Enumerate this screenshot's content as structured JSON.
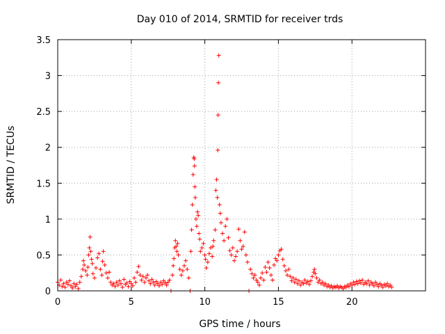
{
  "chart_data": {
    "type": "scatter",
    "title": "Day 010 of 2014, SRMTID for receiver trds",
    "xlabel": "GPS time / hours",
    "ylabel": "SRMTID / TECUs",
    "xlim": [
      0,
      25.0
    ],
    "ylim": [
      0,
      3.5
    ],
    "x_ticks": [
      0,
      5,
      10,
      15,
      20
    ],
    "x_tick_labels": [
      "0",
      "5",
      "10",
      "15",
      "20"
    ],
    "y_ticks": [
      0,
      0.5,
      1,
      1.5,
      2,
      2.5,
      3,
      3.5
    ],
    "y_tick_labels": [
      "0",
      "0.5",
      "1",
      "1.5",
      "2",
      "2.5",
      "3",
      "3.5"
    ],
    "grid": true,
    "marker": "+",
    "series": [
      {
        "name": "SRMTID",
        "color": "#ff0000",
        "points": [
          [
            0.0,
            0.12
          ],
          [
            0.1,
            0.08
          ],
          [
            0.2,
            0.15
          ],
          [
            0.3,
            0.06
          ],
          [
            0.4,
            0.1
          ],
          [
            0.5,
            0.05
          ],
          [
            0.6,
            0.12
          ],
          [
            0.7,
            0.09
          ],
          [
            0.8,
            0.14
          ],
          [
            0.9,
            0.07
          ],
          [
            1.0,
            0.04
          ],
          [
            1.1,
            0.1
          ],
          [
            1.2,
            0.06
          ],
          [
            1.3,
            0.09
          ],
          [
            1.4,
            0.03
          ],
          [
            1.5,
            0.12
          ],
          [
            1.6,
            0.2
          ],
          [
            1.7,
            0.3
          ],
          [
            1.75,
            0.42
          ],
          [
            1.8,
            0.36
          ],
          [
            1.9,
            0.28
          ],
          [
            2.0,
            0.22
          ],
          [
            2.05,
            0.33
          ],
          [
            2.1,
            0.5
          ],
          [
            2.15,
            0.6
          ],
          [
            2.2,
            0.75
          ],
          [
            2.25,
            0.55
          ],
          [
            2.3,
            0.44
          ],
          [
            2.35,
            0.38
          ],
          [
            2.4,
            0.24
          ],
          [
            2.5,
            0.18
          ],
          [
            2.6,
            0.32
          ],
          [
            2.7,
            0.46
          ],
          [
            2.8,
            0.52
          ],
          [
            2.9,
            0.3
          ],
          [
            3.0,
            0.22
          ],
          [
            3.05,
            0.41
          ],
          [
            3.1,
            0.55
          ],
          [
            3.2,
            0.36
          ],
          [
            3.3,
            0.25
          ],
          [
            3.4,
            0.18
          ],
          [
            3.5,
            0.26
          ],
          [
            3.6,
            0.12
          ],
          [
            3.7,
            0.08
          ],
          [
            3.8,
            0.1
          ],
          [
            3.9,
            0.06
          ],
          [
            4.0,
            0.12
          ],
          [
            4.1,
            0.08
          ],
          [
            4.2,
            0.14
          ],
          [
            4.3,
            0.1
          ],
          [
            4.4,
            0.05
          ],
          [
            4.5,
            0.16
          ],
          [
            4.6,
            0.09
          ],
          [
            4.7,
            0.11
          ],
          [
            4.8,
            0.06
          ],
          [
            4.9,
            0.13
          ],
          [
            5.0,
            0.1
          ],
          [
            5.1,
            0.07
          ],
          [
            5.2,
            0.18
          ],
          [
            5.3,
            0.12
          ],
          [
            5.4,
            0.26
          ],
          [
            5.5,
            0.34
          ],
          [
            5.6,
            0.22
          ],
          [
            5.7,
            0.15
          ],
          [
            5.8,
            0.2
          ],
          [
            5.9,
            0.12
          ],
          [
            6.0,
            0.18
          ],
          [
            6.1,
            0.22
          ],
          [
            6.2,
            0.14
          ],
          [
            6.3,
            0.1
          ],
          [
            6.4,
            0.16
          ],
          [
            6.5,
            0.12
          ],
          [
            6.6,
            0.08
          ],
          [
            6.7,
            0.13
          ],
          [
            6.8,
            0.1
          ],
          [
            6.9,
            0.07
          ],
          [
            7.0,
            0.12
          ],
          [
            7.1,
            0.09
          ],
          [
            7.2,
            0.14
          ],
          [
            7.3,
            0.11
          ],
          [
            7.4,
            0.08
          ],
          [
            7.5,
            0.12
          ],
          [
            7.6,
            0.15
          ],
          [
            7.7,
            0.0
          ],
          [
            7.8,
            0.22
          ],
          [
            7.85,
            0.35
          ],
          [
            7.9,
            0.45
          ],
          [
            7.95,
            0.6
          ],
          [
            8.0,
            0.7
          ],
          [
            8.05,
            0.62
          ],
          [
            8.1,
            0.55
          ],
          [
            8.15,
            0.66
          ],
          [
            8.2,
            0.5
          ],
          [
            8.3,
            0.3
          ],
          [
            8.4,
            0.22
          ],
          [
            8.5,
            0.28
          ],
          [
            8.6,
            0.35
          ],
          [
            8.7,
            0.42
          ],
          [
            8.8,
            0.3
          ],
          [
            8.9,
            0.18
          ],
          [
            9.0,
            0.0
          ],
          [
            9.05,
            0.55
          ],
          [
            9.1,
            0.85
          ],
          [
            9.15,
            1.2
          ],
          [
            9.2,
            1.62
          ],
          [
            9.25,
            1.86
          ],
          [
            9.28,
            1.84
          ],
          [
            9.3,
            1.74
          ],
          [
            9.32,
            1.45
          ],
          [
            9.35,
            1.3
          ],
          [
            9.4,
            1.0
          ],
          [
            9.45,
            0.9
          ],
          [
            9.5,
            1.1
          ],
          [
            9.55,
            1.05
          ],
          [
            9.6,
            0.8
          ],
          [
            9.65,
            0.72
          ],
          [
            9.7,
            0.55
          ],
          [
            9.8,
            0.6
          ],
          [
            9.9,
            0.66
          ],
          [
            10.0,
            0.5
          ],
          [
            10.05,
            0.44
          ],
          [
            10.1,
            0.32
          ],
          [
            10.2,
            0.4
          ],
          [
            10.3,
            0.52
          ],
          [
            10.4,
            0.6
          ],
          [
            10.5,
            0.48
          ],
          [
            10.55,
            0.62
          ],
          [
            10.6,
            0.7
          ],
          [
            10.7,
            0.85
          ],
          [
            10.75,
            1.4
          ],
          [
            10.8,
            1.55
          ],
          [
            10.85,
            1.3
          ],
          [
            10.88,
            1.96
          ],
          [
            10.9,
            2.45
          ],
          [
            10.92,
            2.9
          ],
          [
            10.95,
            3.28
          ],
          [
            11.0,
            1.2
          ],
          [
            11.05,
            1.08
          ],
          [
            11.1,
            0.95
          ],
          [
            11.2,
            0.8
          ],
          [
            11.3,
            0.7
          ],
          [
            11.4,
            0.9
          ],
          [
            11.5,
            1.0
          ],
          [
            11.6,
            0.74
          ],
          [
            11.7,
            0.56
          ],
          [
            11.8,
            0.5
          ],
          [
            11.9,
            0.6
          ],
          [
            12.0,
            0.42
          ],
          [
            12.1,
            0.48
          ],
          [
            12.2,
            0.55
          ],
          [
            12.3,
            0.86
          ],
          [
            12.4,
            0.7
          ],
          [
            12.5,
            0.58
          ],
          [
            12.6,
            0.62
          ],
          [
            12.7,
            0.82
          ],
          [
            12.8,
            0.5
          ],
          [
            12.9,
            0.4
          ],
          [
            13.0,
            0.0
          ],
          [
            13.1,
            0.3
          ],
          [
            13.2,
            0.24
          ],
          [
            13.3,
            0.18
          ],
          [
            13.4,
            0.22
          ],
          [
            13.5,
            0.15
          ],
          [
            13.6,
            0.12
          ],
          [
            13.7,
            0.08
          ],
          [
            13.8,
            0.18
          ],
          [
            13.9,
            0.25
          ],
          [
            14.0,
            0.15
          ],
          [
            14.1,
            0.33
          ],
          [
            14.2,
            0.26
          ],
          [
            14.3,
            0.4
          ],
          [
            14.4,
            0.32
          ],
          [
            14.5,
            0.22
          ],
          [
            14.6,
            0.15
          ],
          [
            14.7,
            0.36
          ],
          [
            14.8,
            0.45
          ],
          [
            14.9,
            0.42
          ],
          [
            15.0,
            0.5
          ],
          [
            15.1,
            0.56
          ],
          [
            15.2,
            0.58
          ],
          [
            15.3,
            0.44
          ],
          [
            15.4,
            0.35
          ],
          [
            15.5,
            0.28
          ],
          [
            15.6,
            0.22
          ],
          [
            15.7,
            0.3
          ],
          [
            15.8,
            0.2
          ],
          [
            15.9,
            0.14
          ],
          [
            16.0,
            0.18
          ],
          [
            16.1,
            0.12
          ],
          [
            16.2,
            0.16
          ],
          [
            16.3,
            0.1
          ],
          [
            16.4,
            0.14
          ],
          [
            16.5,
            0.08
          ],
          [
            16.6,
            0.12
          ],
          [
            16.7,
            0.1
          ],
          [
            16.8,
            0.15
          ],
          [
            16.9,
            0.11
          ],
          [
            17.0,
            0.13
          ],
          [
            17.1,
            0.09
          ],
          [
            17.2,
            0.14
          ],
          [
            17.3,
            0.2
          ],
          [
            17.4,
            0.26
          ],
          [
            17.45,
            0.3
          ],
          [
            17.5,
            0.24
          ],
          [
            17.6,
            0.18
          ],
          [
            17.7,
            0.12
          ],
          [
            17.8,
            0.15
          ],
          [
            17.9,
            0.1
          ],
          [
            18.0,
            0.12
          ],
          [
            18.1,
            0.08
          ],
          [
            18.2,
            0.1
          ],
          [
            18.3,
            0.06
          ],
          [
            18.4,
            0.08
          ],
          [
            18.5,
            0.05
          ],
          [
            18.6,
            0.07
          ],
          [
            18.7,
            0.04
          ],
          [
            18.8,
            0.06
          ],
          [
            18.9,
            0.05
          ],
          [
            19.0,
            0.07
          ],
          [
            19.1,
            0.04
          ],
          [
            19.2,
            0.06
          ],
          [
            19.3,
            0.05
          ],
          [
            19.4,
            0.03
          ],
          [
            19.5,
            0.06
          ],
          [
            19.6,
            0.05
          ],
          [
            19.7,
            0.08
          ],
          [
            19.8,
            0.06
          ],
          [
            19.9,
            0.1
          ],
          [
            20.0,
            0.08
          ],
          [
            20.1,
            0.12
          ],
          [
            20.2,
            0.09
          ],
          [
            20.3,
            0.13
          ],
          [
            20.4,
            0.1
          ],
          [
            20.5,
            0.14
          ],
          [
            20.6,
            0.11
          ],
          [
            20.7,
            0.15
          ],
          [
            20.8,
            0.09
          ],
          [
            20.9,
            0.12
          ],
          [
            21.0,
            0.1
          ],
          [
            21.1,
            0.14
          ],
          [
            21.2,
            0.08
          ],
          [
            21.3,
            0.12
          ],
          [
            21.4,
            0.1
          ],
          [
            21.5,
            0.07
          ],
          [
            21.6,
            0.12
          ],
          [
            21.7,
            0.09
          ],
          [
            21.8,
            0.06
          ],
          [
            21.9,
            0.1
          ],
          [
            22.0,
            0.08
          ],
          [
            22.1,
            0.05
          ],
          [
            22.2,
            0.09
          ],
          [
            22.3,
            0.07
          ],
          [
            22.4,
            0.1
          ],
          [
            22.5,
            0.06
          ],
          [
            22.6,
            0.08
          ],
          [
            22.7,
            0.05
          ]
        ]
      }
    ]
  }
}
